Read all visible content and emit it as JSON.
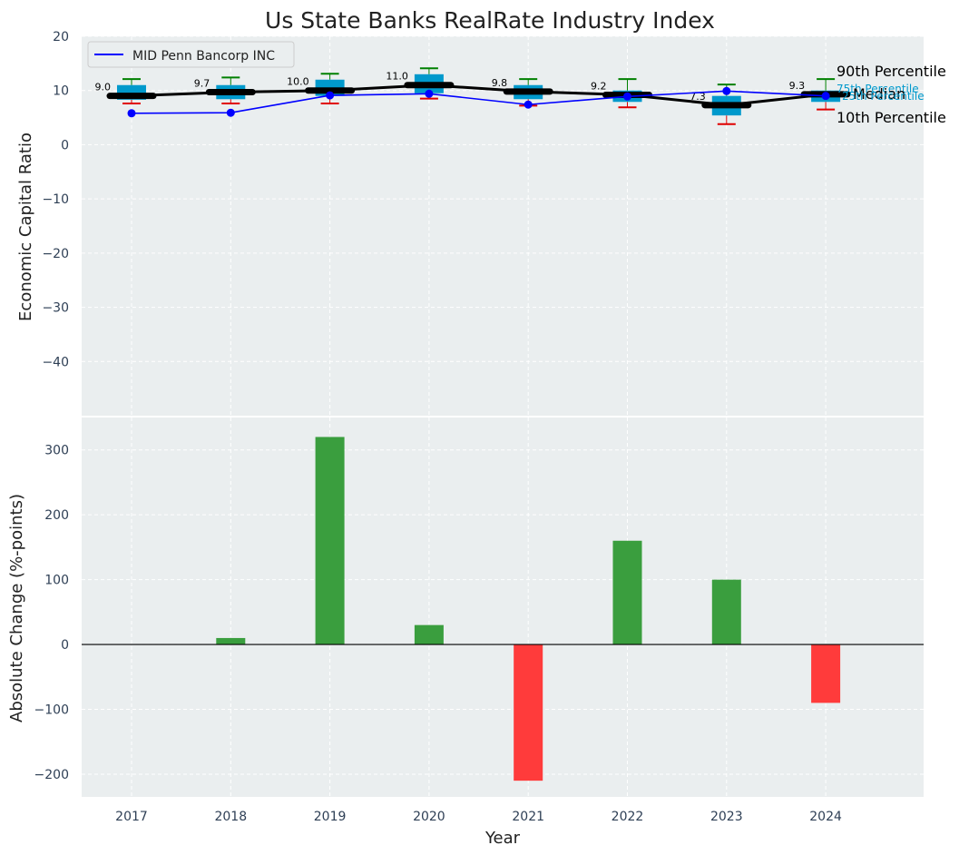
{
  "title": "Us State Banks RealRate Industry Index",
  "colors": {
    "panel_bg": "#eaeeef",
    "grid": "#ffffff",
    "company_line": "#0000ff",
    "median_line": "#000000",
    "box_fill": "#0099cc",
    "whisker_high": "#008000",
    "whisker_low": "#e00000",
    "bar_positive": "#3a9e3e",
    "bar_negative": "#ff3b3b",
    "tick_text": "#2e3f55",
    "label_25": "#0099cc"
  },
  "chart_data": [
    {
      "type": "box-line",
      "ylabel": "Economic Capital Ratio",
      "ylim": [
        -50,
        20
      ],
      "yticks": [
        20,
        10,
        0,
        -10,
        -20,
        -30,
        -40
      ],
      "ytick_labels": [
        "20",
        "10",
        "0",
        "−10",
        "−20",
        "−30",
        "−40"
      ],
      "categories": [
        "2017",
        "2018",
        "2019",
        "2020",
        "2021",
        "2022",
        "2023",
        "2024"
      ],
      "legend": {
        "label": "MID Penn Bancorp INC",
        "position": "top-left"
      },
      "company_series": {
        "name": "MID Penn Bancorp INC",
        "values": [
          5.8,
          5.9,
          9.1,
          9.4,
          7.4,
          8.9,
          9.9,
          9.0
        ]
      },
      "median": [
        9.0,
        9.7,
        10.0,
        11.0,
        9.8,
        9.2,
        7.3,
        9.3
      ],
      "median_labels": [
        "9.0",
        "9.7",
        "10.0",
        "11.0",
        "9.8",
        "9.2",
        "7.3",
        "9.3"
      ],
      "p25": [
        8.3,
        8.4,
        9.0,
        9.5,
        8.4,
        7.9,
        5.4,
        7.9
      ],
      "p75": [
        11.0,
        11.0,
        12.0,
        13.0,
        11.0,
        10.0,
        9.0,
        10.0
      ],
      "p10": [
        7.6,
        7.6,
        7.6,
        8.5,
        7.2,
        6.9,
        3.8,
        6.5
      ],
      "p90": [
        12.1,
        12.4,
        13.1,
        14.1,
        12.1,
        12.1,
        11.1,
        12.1
      ],
      "percentile_labels": {
        "p90": "90th Percentile",
        "p75": "75th Percentile",
        "median": "Median",
        "p25": "25th Percentile",
        "p10": "10th Percentile"
      }
    },
    {
      "type": "bar",
      "xlabel": "Year",
      "ylabel": "Absolute Change (%-points)",
      "ylim": [
        -235,
        350
      ],
      "yticks": [
        300,
        200,
        100,
        0,
        -100,
        -200
      ],
      "ytick_labels": [
        "300",
        "200",
        "100",
        "0",
        "−100",
        "−200"
      ],
      "categories": [
        "2017",
        "2018",
        "2019",
        "2020",
        "2021",
        "2022",
        "2023",
        "2024"
      ],
      "values": [
        0,
        10,
        320,
        30,
        -210,
        160,
        100,
        -90
      ]
    }
  ]
}
